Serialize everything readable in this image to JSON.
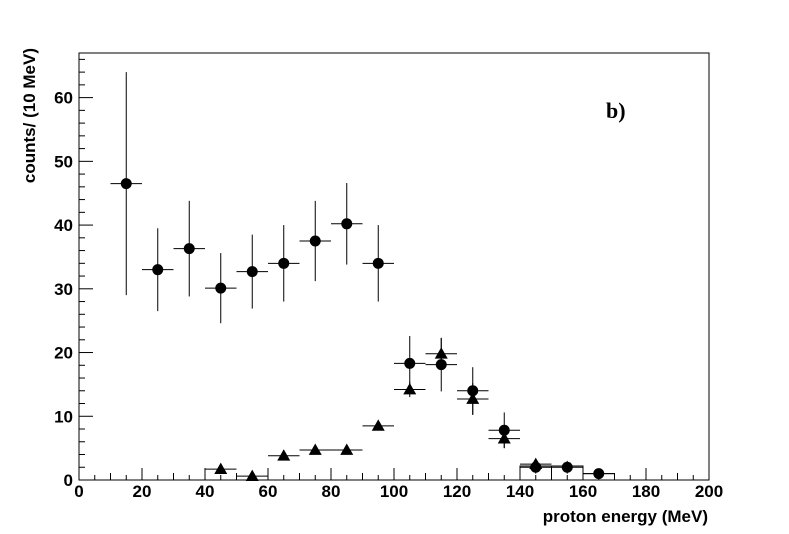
{
  "chart_data": {
    "type": "scatter",
    "title": "",
    "panel_label": "b)",
    "xlabel": "proton energy (MeV)",
    "ylabel": "counts/ (10 MeV)",
    "xlim": [
      0,
      200
    ],
    "ylim": [
      0,
      67
    ],
    "x_ticks": [
      0,
      20,
      40,
      60,
      80,
      100,
      120,
      140,
      160,
      180,
      200
    ],
    "y_ticks": [
      0,
      10,
      20,
      30,
      40,
      50,
      60
    ],
    "grid": false,
    "legend": "none",
    "bin_width": 10,
    "series": [
      {
        "marker": "circle",
        "points": [
          {
            "x": 15,
            "y": 46.5,
            "err": 17.5
          },
          {
            "x": 25,
            "y": 33.0,
            "err": 6.5
          },
          {
            "x": 35,
            "y": 36.3,
            "err": 7.5
          },
          {
            "x": 45,
            "y": 30.1,
            "err": 5.5
          },
          {
            "x": 55,
            "y": 32.7,
            "err": 5.8
          },
          {
            "x": 65,
            "y": 34.0,
            "err": 6.0
          },
          {
            "x": 75,
            "y": 37.5,
            "err": 6.3
          },
          {
            "x": 85,
            "y": 40.2,
            "err": 6.4
          },
          {
            "x": 95,
            "y": 34.0,
            "err": 6.0
          },
          {
            "x": 105,
            "y": 18.3,
            "err": 4.3
          },
          {
            "x": 115,
            "y": 18.1,
            "err": 4.2
          },
          {
            "x": 125,
            "y": 14.0,
            "err": 3.7
          },
          {
            "x": 135,
            "y": 7.8,
            "err": 2.8
          },
          {
            "x": 145,
            "y": 2.0,
            "err": 1.0
          },
          {
            "x": 155,
            "y": 2.0,
            "err": 1.0
          },
          {
            "x": 165,
            "y": 1.0,
            "err": 0.5
          }
        ]
      },
      {
        "marker": "triangle",
        "points": [
          {
            "x": 45,
            "y": 1.7,
            "err": 0.4
          },
          {
            "x": 55,
            "y": 0.6,
            "err": 0.3
          },
          {
            "x": 65,
            "y": 3.8,
            "err": 0.3
          },
          {
            "x": 75,
            "y": 4.7,
            "err": 0.3
          },
          {
            "x": 85,
            "y": 4.7,
            "err": 0.3
          },
          {
            "x": 95,
            "y": 8.5,
            "err": 0.3
          },
          {
            "x": 105,
            "y": 14.2,
            "err": 1.2
          },
          {
            "x": 115,
            "y": 19.8,
            "err": 2.5
          },
          {
            "x": 125,
            "y": 12.7,
            "err": 2.5
          },
          {
            "x": 135,
            "y": 6.5,
            "err": 1.5
          },
          {
            "x": 145,
            "y": 2.5,
            "err": 0.5
          }
        ]
      }
    ],
    "histogram": {
      "bins": [
        {
          "x0": 140,
          "x1": 150,
          "y": 2.2
        },
        {
          "x0": 150,
          "x1": 160,
          "y": 2.2
        },
        {
          "x0": 160,
          "x1": 170,
          "y": 1.0
        }
      ]
    }
  }
}
